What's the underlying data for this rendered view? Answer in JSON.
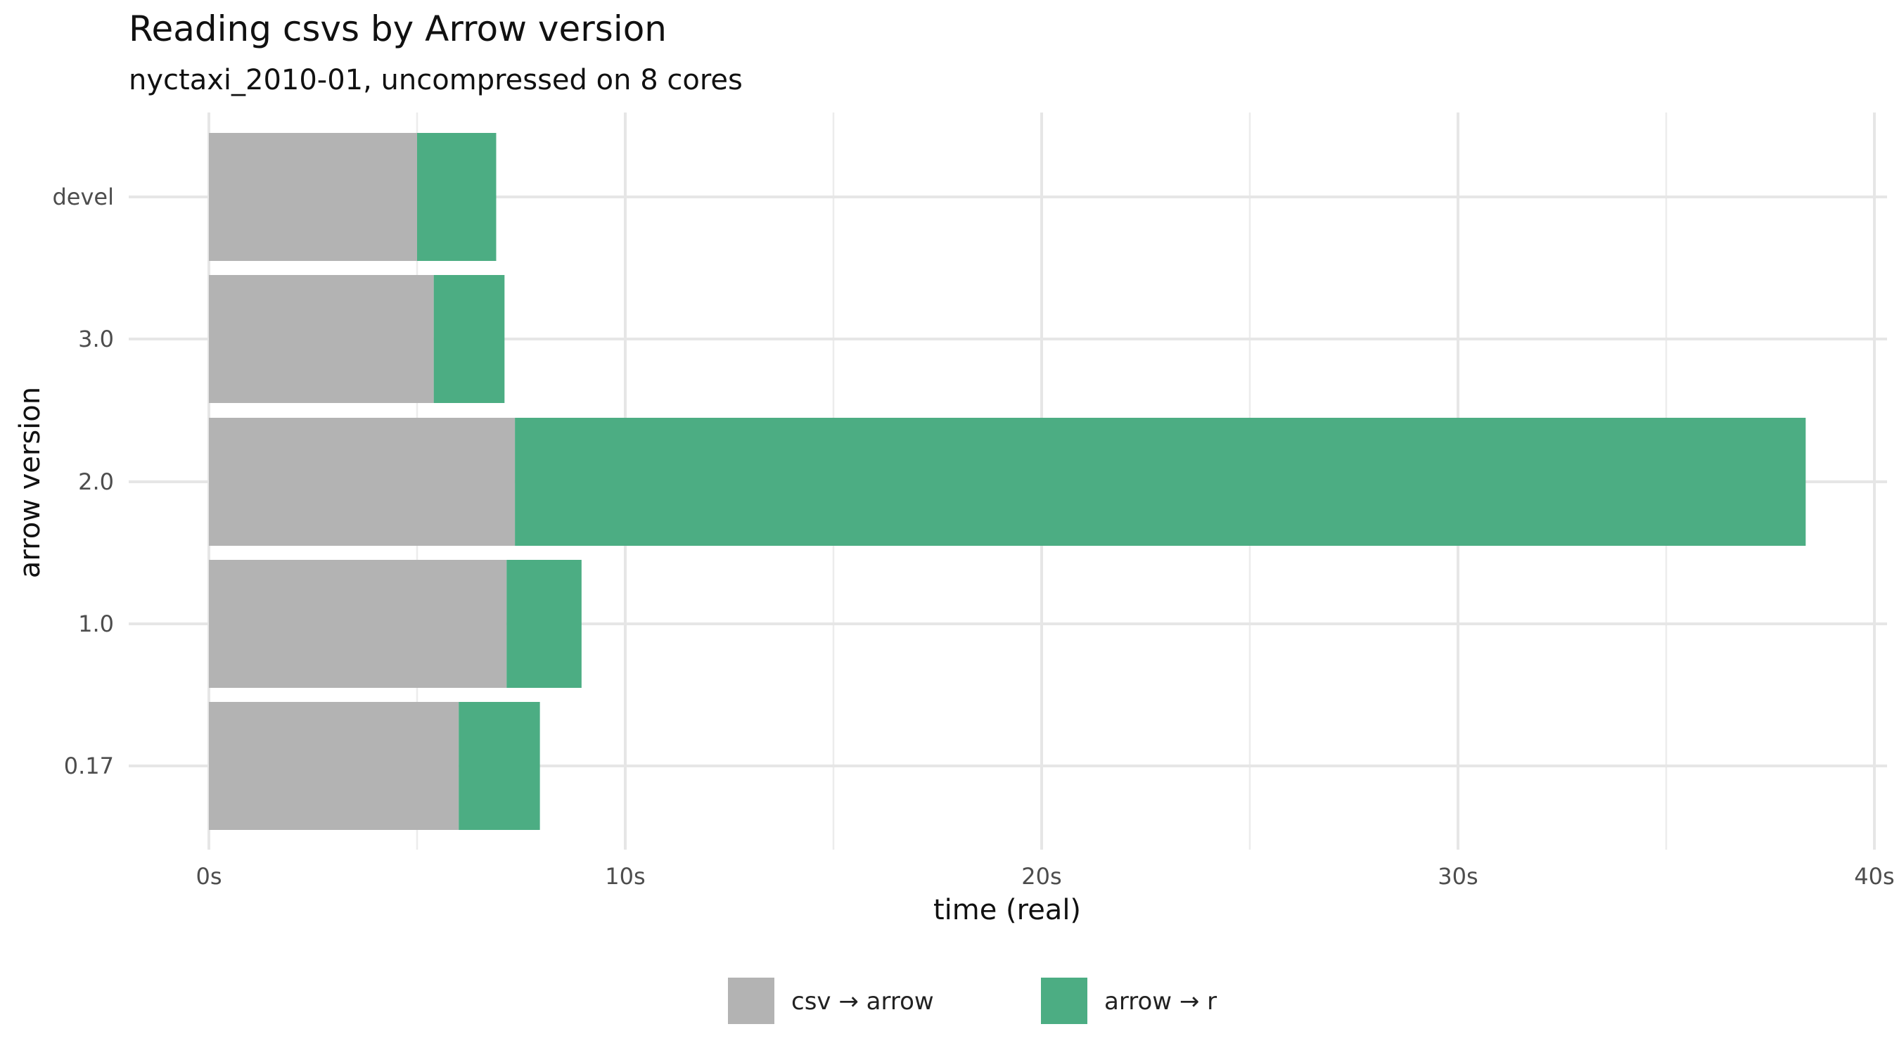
{
  "chart_data": {
    "type": "bar",
    "orientation": "horizontal",
    "stacked": true,
    "title": "Reading csvs by Arrow version",
    "subtitle": "nyctaxi_2010-01, uncompressed on 8 cores",
    "xlabel": "time (real)",
    "ylabel": "arrow version",
    "xlim": [
      0,
      40
    ],
    "x_ticks": [
      "0s",
      "10s",
      "20s",
      "30s",
      "40s"
    ],
    "x_tick_values": [
      0,
      10,
      20,
      30,
      40
    ],
    "categories": [
      "devel",
      "3.0",
      "2.0",
      "1.0",
      "0.17"
    ],
    "series": [
      {
        "name": "csv → arrow",
        "color": "#b3b3b3",
        "values": [
          5.0,
          5.4,
          7.35,
          7.15,
          6.0
        ]
      },
      {
        "name": "arrow → r",
        "color": "#4cad83",
        "values": [
          1.9,
          1.7,
          31.0,
          1.8,
          1.95
        ]
      }
    ],
    "grid": true,
    "legend_position": "bottom"
  }
}
